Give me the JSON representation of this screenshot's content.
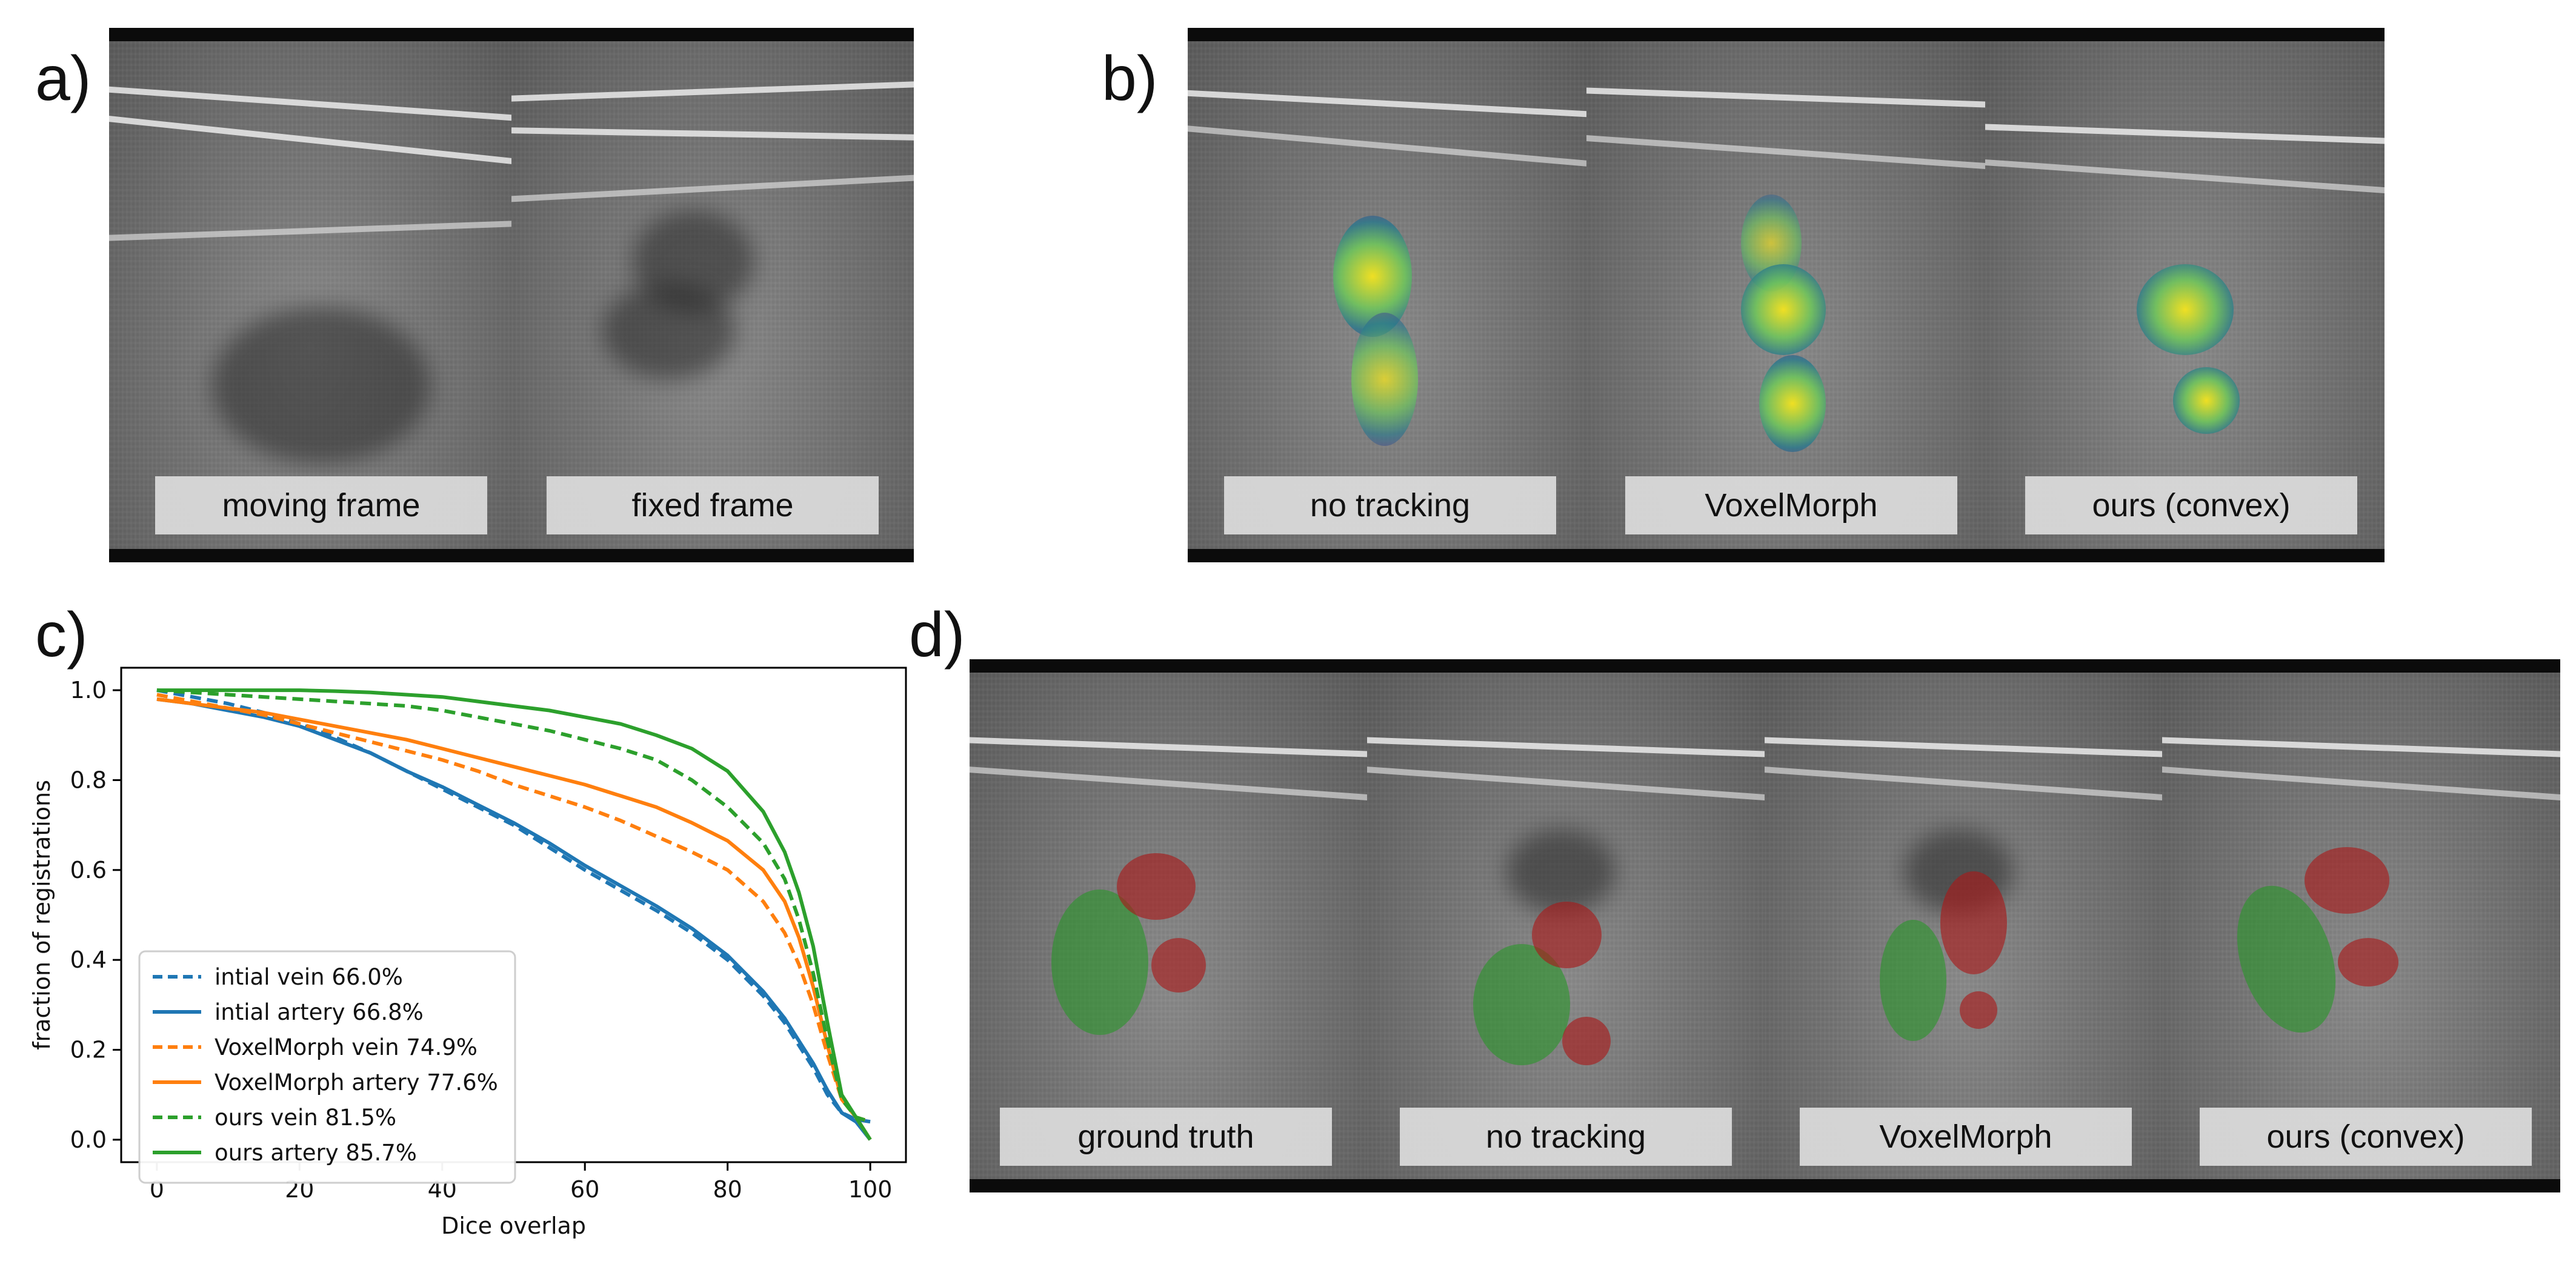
{
  "panels": {
    "a": {
      "letter": "a)",
      "labels": [
        "moving frame",
        "fixed frame"
      ]
    },
    "b": {
      "letter": "b)",
      "labels": [
        "no tracking",
        "VoxelMorph",
        "ours (convex)"
      ]
    },
    "c": {
      "letter": "c)"
    },
    "d": {
      "letter": "d)",
      "labels": [
        "ground truth",
        "no tracking",
        "VoxelMorph",
        "ours (convex)"
      ]
    }
  },
  "colors": {
    "initial": "#1f77b4",
    "voxelmorph": "#ff7f0e",
    "ours": "#2ca02c"
  },
  "chart_data": {
    "type": "line",
    "title": "",
    "xlabel": "Dice overlap",
    "ylabel": "fraction of registrations",
    "xlim": [
      -5,
      105
    ],
    "ylim": [
      -0.05,
      1.05
    ],
    "xticks": [
      0,
      20,
      40,
      60,
      80,
      100
    ],
    "yticks": [
      0.0,
      0.2,
      0.4,
      0.6,
      0.8,
      1.0
    ],
    "xtick_labels": [
      "0",
      "20",
      "40",
      "60",
      "80",
      "100"
    ],
    "ytick_labels": [
      "0.0",
      "0.2",
      "0.4",
      "0.6",
      "0.8",
      "1.0"
    ],
    "grid": false,
    "legend_position": "lower-left",
    "series": [
      {
        "name": "intial vein 66.0%",
        "color": "#1f77b4",
        "dash": true,
        "x": [
          0,
          5,
          10,
          15,
          20,
          25,
          30,
          35,
          40,
          45,
          50,
          55,
          60,
          65,
          70,
          75,
          80,
          85,
          88,
          90,
          92,
          94,
          96,
          98,
          100
        ],
        "y": [
          1.0,
          0.985,
          0.97,
          0.95,
          0.925,
          0.895,
          0.86,
          0.82,
          0.78,
          0.74,
          0.7,
          0.65,
          0.6,
          0.555,
          0.51,
          0.46,
          0.4,
          0.32,
          0.26,
          0.21,
          0.16,
          0.1,
          0.06,
          0.045,
          0.04
        ]
      },
      {
        "name": "intial artery 66.8%",
        "color": "#1f77b4",
        "dash": false,
        "x": [
          0,
          5,
          10,
          15,
          20,
          25,
          30,
          35,
          40,
          45,
          50,
          55,
          60,
          65,
          70,
          75,
          80,
          85,
          88,
          90,
          92,
          94,
          96,
          98,
          100
        ],
        "y": [
          0.98,
          0.97,
          0.955,
          0.94,
          0.92,
          0.89,
          0.86,
          0.82,
          0.785,
          0.745,
          0.705,
          0.66,
          0.61,
          0.565,
          0.52,
          0.47,
          0.41,
          0.33,
          0.27,
          0.22,
          0.17,
          0.11,
          0.06,
          0.04,
          0.0
        ]
      },
      {
        "name": "VoxelMorph vein 74.9%",
        "color": "#ff7f0e",
        "dash": true,
        "x": [
          0,
          5,
          10,
          15,
          20,
          25,
          30,
          35,
          40,
          45,
          50,
          55,
          60,
          65,
          70,
          75,
          80,
          85,
          88,
          90,
          92,
          94,
          96,
          98,
          100
        ],
        "y": [
          0.99,
          0.975,
          0.96,
          0.945,
          0.925,
          0.905,
          0.885,
          0.865,
          0.845,
          0.82,
          0.79,
          0.765,
          0.74,
          0.71,
          0.675,
          0.64,
          0.6,
          0.53,
          0.46,
          0.39,
          0.3,
          0.19,
          0.09,
          0.05,
          0.04
        ]
      },
      {
        "name": "VoxelMorph artery 77.6%",
        "color": "#ff7f0e",
        "dash": false,
        "x": [
          0,
          5,
          10,
          15,
          20,
          25,
          30,
          35,
          40,
          45,
          50,
          55,
          60,
          65,
          70,
          75,
          80,
          85,
          88,
          90,
          92,
          94,
          96,
          98,
          100
        ],
        "y": [
          0.98,
          0.97,
          0.96,
          0.95,
          0.935,
          0.92,
          0.905,
          0.89,
          0.87,
          0.85,
          0.83,
          0.81,
          0.79,
          0.765,
          0.74,
          0.705,
          0.665,
          0.6,
          0.53,
          0.45,
          0.34,
          0.21,
          0.09,
          0.05,
          0.0
        ]
      },
      {
        "name": "ours vein 81.5%",
        "color": "#2ca02c",
        "dash": true,
        "x": [
          0,
          5,
          10,
          15,
          20,
          25,
          30,
          35,
          40,
          45,
          50,
          55,
          60,
          65,
          70,
          75,
          80,
          85,
          88,
          90,
          92,
          94,
          96,
          98,
          100
        ],
        "y": [
          1.0,
          0.995,
          0.99,
          0.985,
          0.98,
          0.975,
          0.97,
          0.965,
          0.955,
          0.94,
          0.925,
          0.91,
          0.89,
          0.87,
          0.845,
          0.8,
          0.74,
          0.66,
          0.58,
          0.49,
          0.37,
          0.22,
          0.09,
          0.05,
          0.04
        ]
      },
      {
        "name": "ours artery 85.7%",
        "color": "#2ca02c",
        "dash": false,
        "x": [
          0,
          5,
          10,
          15,
          20,
          25,
          30,
          35,
          40,
          45,
          50,
          55,
          60,
          65,
          70,
          75,
          80,
          85,
          88,
          90,
          92,
          94,
          96,
          98,
          100
        ],
        "y": [
          1.0,
          1.0,
          1.0,
          1.0,
          1.0,
          0.998,
          0.995,
          0.99,
          0.985,
          0.975,
          0.965,
          0.955,
          0.94,
          0.925,
          0.9,
          0.87,
          0.82,
          0.73,
          0.64,
          0.55,
          0.43,
          0.26,
          0.1,
          0.05,
          0.0
        ]
      }
    ]
  }
}
